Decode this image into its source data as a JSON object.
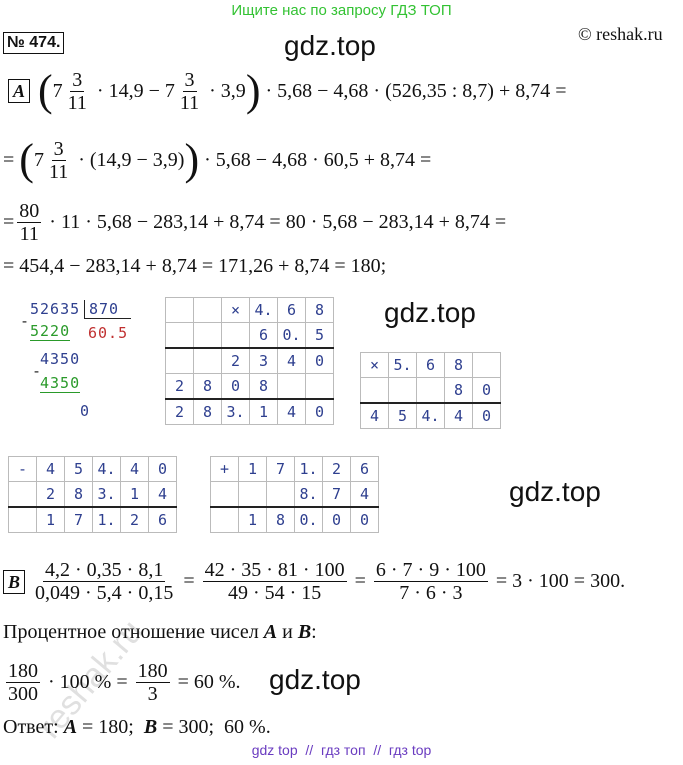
{
  "header": {
    "banner": "Ищите нас по запросу ГДЗ ТОП",
    "problem": "№ 474.",
    "copyright": "© reshak.ru"
  },
  "watermarks": [
    "gdz.top",
    "gdz.top",
    "gdz.top",
    "gdz.top",
    "reshak.ru"
  ],
  "part_a": {
    "label": "A",
    "lines": [
      [
        {
          "paren": "("
        },
        {
          "whole": "7",
          "num": "3",
          "den": "11"
        },
        " · 14,9 − ",
        {
          "whole": "7",
          "num": "3",
          "den": "11"
        },
        " · 3,9",
        {
          "paren": ")"
        },
        " · 5,68 − 4,68 · (526,35 : 8,7) + 8,74 ="
      ],
      [
        "= ",
        {
          "paren": "("
        },
        {
          "whole": "7",
          "num": "3",
          "den": "11"
        },
        " · (14,9 − 3,9)",
        {
          "paren": ")"
        },
        " · 5,68 − 4,68 · 60,5 + 8,74 ="
      ],
      [
        "=",
        {
          "num": "80",
          "den": "11"
        },
        " · 11 · 5,68 − 283,14 + 8,74 = 80 · 5,68 − 283,14 + 8,74 ="
      ],
      [
        "= 454,4 − 283,14 + 8,74 = 171,26 + 8,74 = 180;"
      ]
    ]
  },
  "division": {
    "dividend": "52635",
    "divisor": "870",
    "minus1": "-",
    "subtrahend1": "5220",
    "quotient": "60.5",
    "remainder": "4350",
    "minus2": "-",
    "subtrahend2": "4350",
    "result": "0"
  },
  "grids": [
    [
      [
        null,
        null,
        "×",
        "4.",
        "6",
        "8"
      ],
      [
        null,
        null,
        null,
        "6",
        "0.",
        "5"
      ],
      [
        null,
        null,
        "2",
        "3",
        "4",
        "0"
      ],
      [
        "2",
        "8",
        "0",
        "8",
        null,
        null
      ],
      [
        "2",
        "8",
        "3.",
        "1",
        "4",
        "0"
      ]
    ],
    [
      [
        "×",
        "5.",
        "6",
        "8",
        null
      ],
      [
        null,
        null,
        null,
        "8",
        "0"
      ],
      [
        "4",
        "5",
        "4.",
        "4",
        "0"
      ]
    ],
    [
      [
        "-",
        "4",
        "5",
        "4.",
        "4",
        "0"
      ],
      [
        null,
        "2",
        "8",
        "3.",
        "1",
        "4"
      ],
      [
        null,
        "1",
        "7",
        "1.",
        "2",
        "6"
      ]
    ],
    [
      [
        "+",
        "1",
        "7",
        "1.",
        "2",
        "6"
      ],
      [
        null,
        null,
        null,
        "8.",
        "7",
        "4"
      ],
      [
        null,
        "1",
        "8",
        "0.",
        "0",
        "0"
      ]
    ]
  ],
  "part_b": {
    "label": "B",
    "lines": [
      [
        {
          "num": "4,2 · 0,35 · 8,1",
          "den": "0,049 · 5,4 · 0,15"
        },
        " = ",
        {
          "num": "42 · 35 · 81 · 100",
          "den": "49 · 54 · 15"
        },
        " = ",
        {
          "num": "6 · 7 · 9 · 100",
          "den": "7 · 6 · 3"
        },
        " = 3 · 100 = 300."
      ],
      [
        "Процентное отношение чисел ",
        {
          "var": "A"
        },
        " и ",
        {
          "var": "B"
        },
        ":"
      ],
      [
        {
          "num": "180",
          "den": "300"
        },
        " · 100 % = ",
        {
          "num": "180",
          "den": "3"
        },
        " = 60 %."
      ],
      [
        "Ответ: ",
        {
          "var": "A"
        },
        " = 180;  ",
        {
          "var": "B"
        },
        " = 300;  60 %."
      ]
    ]
  },
  "footer": "gdz top  //  гдз топ  //  гдз top"
}
